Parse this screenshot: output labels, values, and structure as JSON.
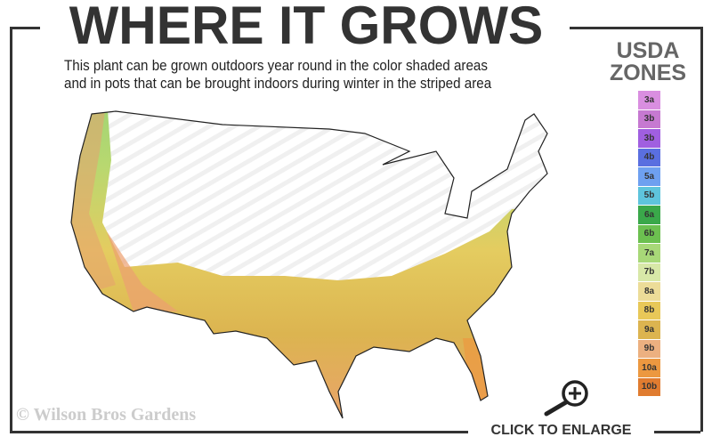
{
  "header": {
    "title": "WHERE IT GROWS",
    "subtitle_line1": "This plant can be grown outdoors year round in the color shaded areas",
    "subtitle_line2": "and in pots that can be brought indoors during winter in the striped area"
  },
  "legend": {
    "title_line1": "USDA",
    "title_line2": "ZONES",
    "zones": [
      {
        "label": "3a",
        "color": "#d98ee0"
      },
      {
        "label": "3b",
        "color": "#c679d1"
      },
      {
        "label": "3b",
        "color": "#a05fe0"
      },
      {
        "label": "4b",
        "color": "#5a6fe0"
      },
      {
        "label": "5a",
        "color": "#6ea0f0"
      },
      {
        "label": "5b",
        "color": "#5ec4dc"
      },
      {
        "label": "6a",
        "color": "#3aa84a"
      },
      {
        "label": "6b",
        "color": "#6cc050"
      },
      {
        "label": "7a",
        "color": "#a8d878"
      },
      {
        "label": "7b",
        "color": "#d8e8a8"
      },
      {
        "label": "8a",
        "color": "#ecdc98"
      },
      {
        "label": "8b",
        "color": "#e8c858"
      },
      {
        "label": "9a",
        "color": "#dcb450"
      },
      {
        "label": "9b",
        "color": "#ecb080"
      },
      {
        "label": "10a",
        "color": "#ec9840"
      },
      {
        "label": "10b",
        "color": "#e07c30"
      }
    ]
  },
  "footer": {
    "copyright": "© Wilson Bros Gardens",
    "enlarge_label": "CLICK TO ENLARGE",
    "enlarge_icon": "zoom-in-icon"
  }
}
